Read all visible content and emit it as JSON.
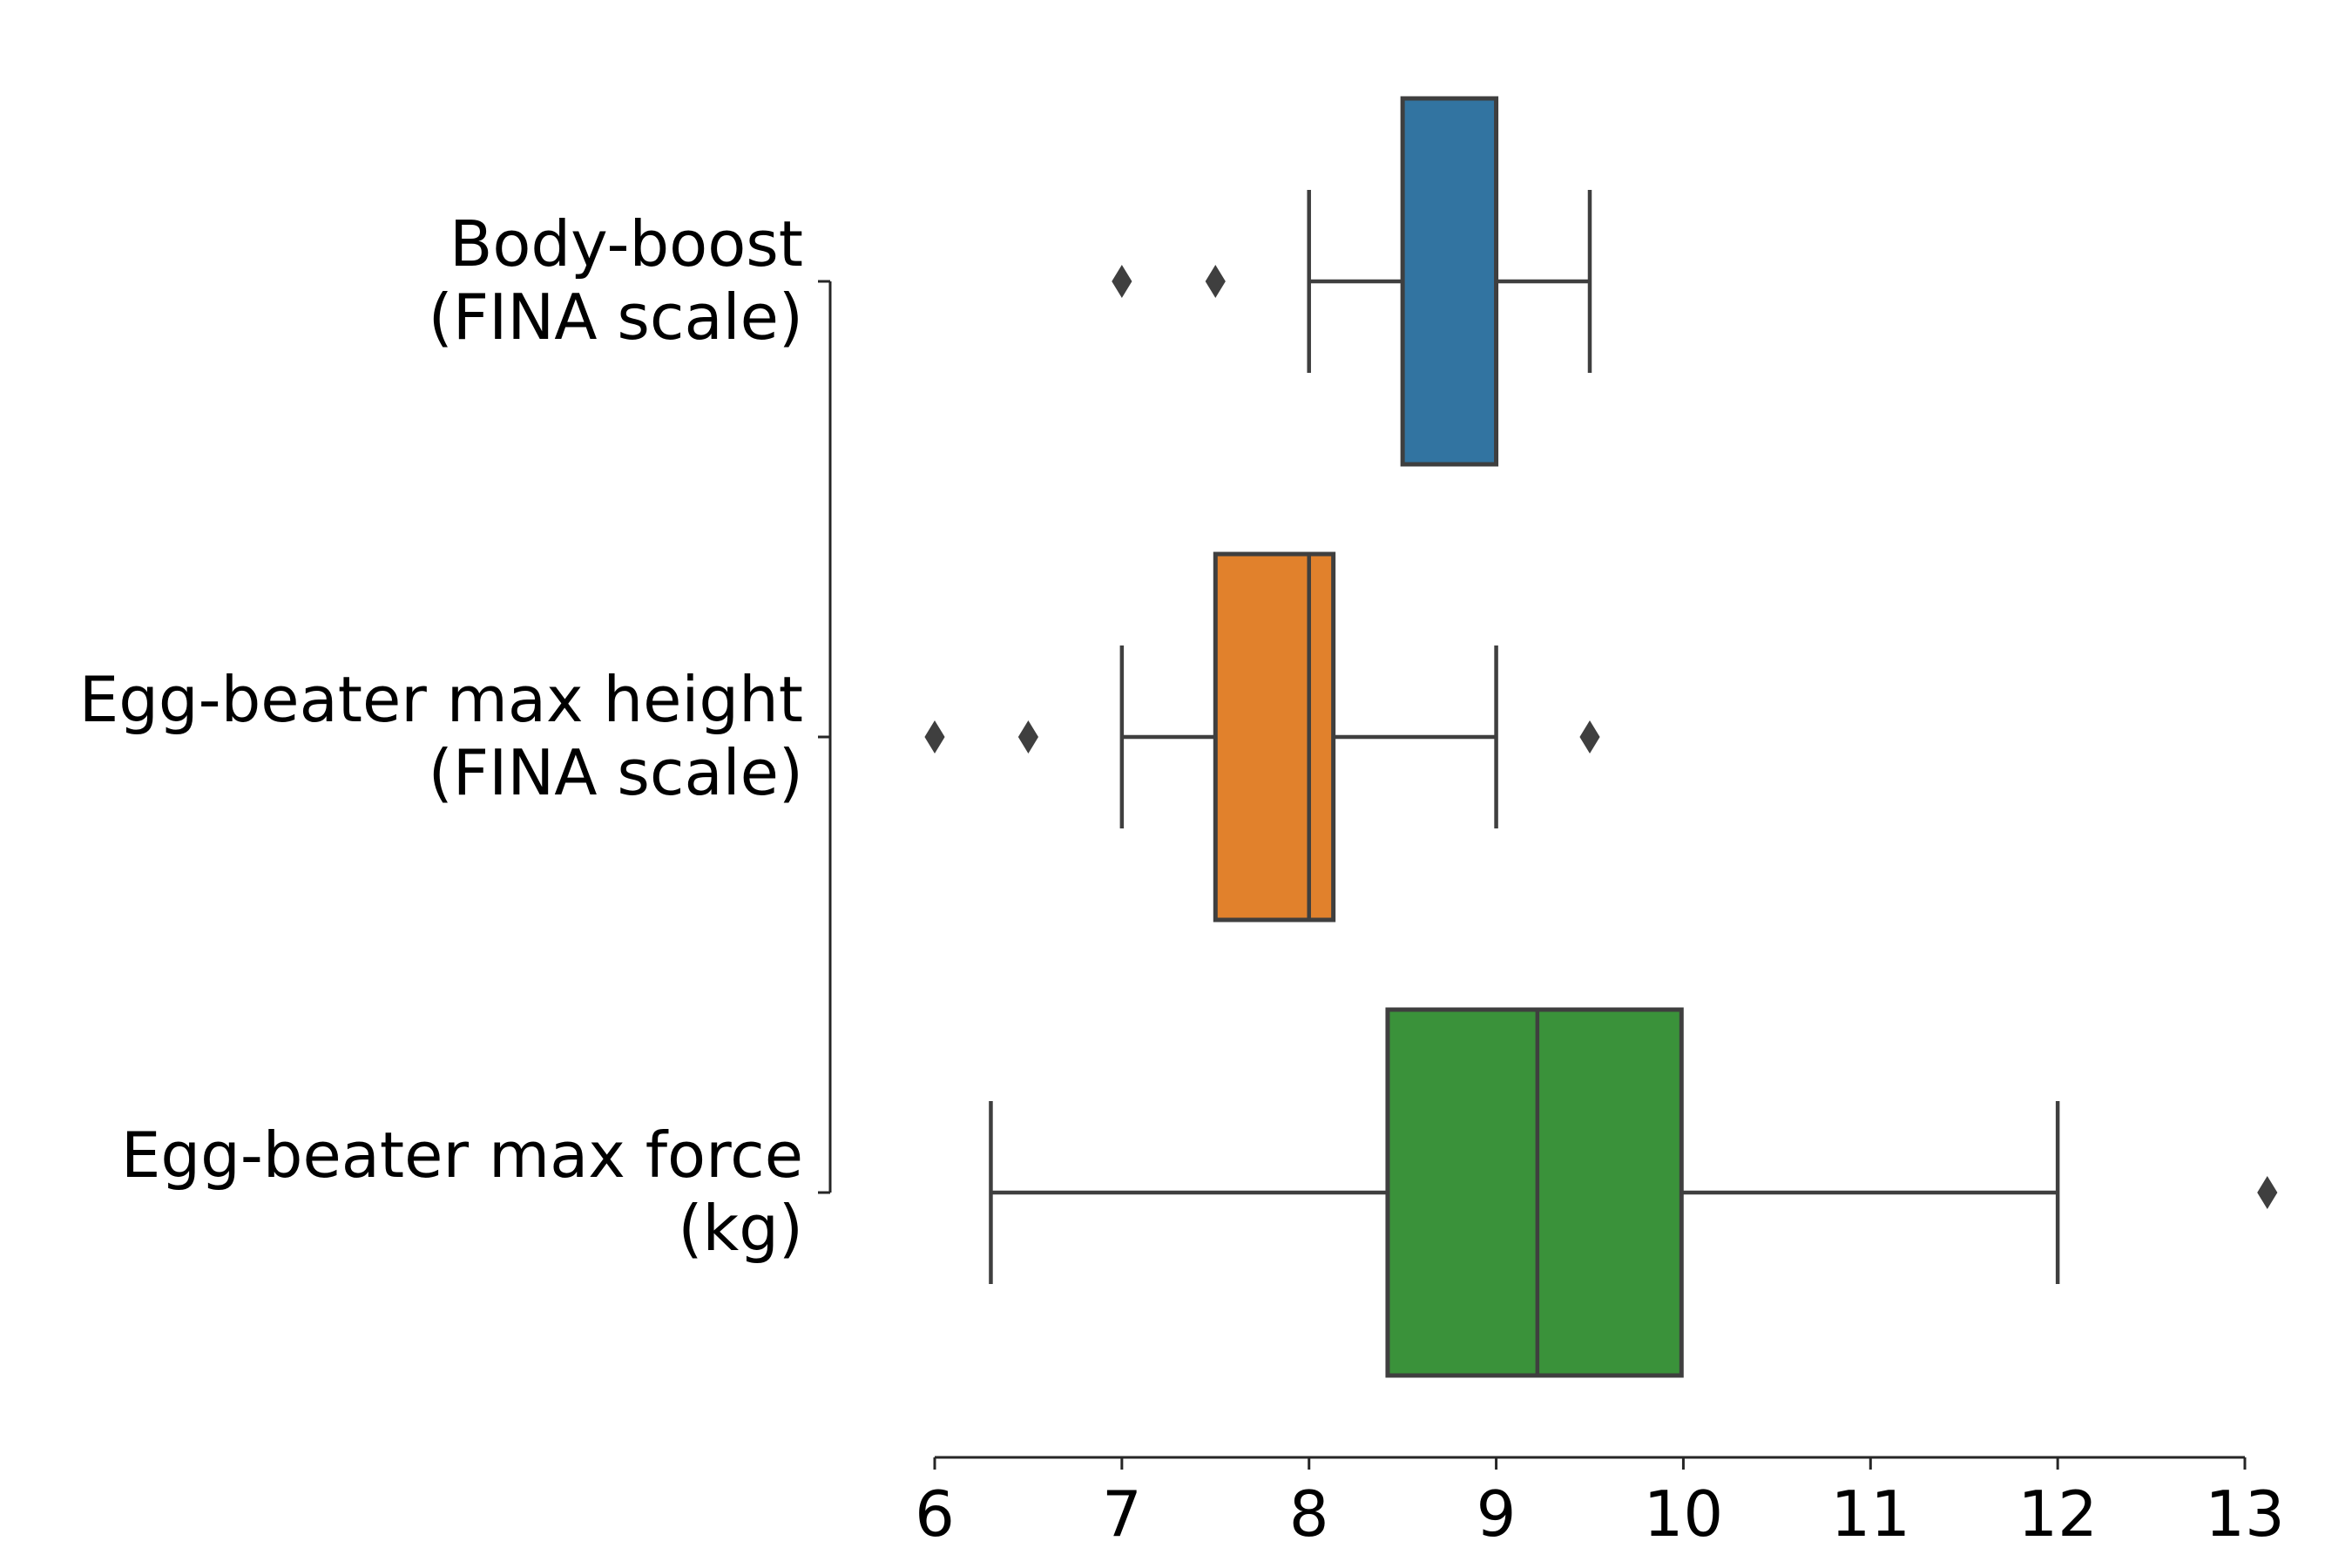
{
  "chart_data": {
    "type": "boxplot",
    "orientation": "horizontal",
    "title": "",
    "xlabel": "",
    "ylabel": "",
    "xlim": [
      6,
      13
    ],
    "x_ticks": [
      "6",
      "7",
      "8",
      "9",
      "10",
      "11",
      "12",
      "13"
    ],
    "grid": false,
    "series": [
      {
        "lines": [
          "Body-boost",
          "(FINA scale)"
        ],
        "color": "#3274a1",
        "whisker_low": 8.0,
        "q1": 8.5,
        "median": 9.0,
        "q3": 9.0,
        "whisker_high": 9.5,
        "outliers": [
          7.0,
          7.5
        ]
      },
      {
        "lines": [
          "Egg-beater max height",
          "(FINA scale)"
        ],
        "color": "#e1812c",
        "whisker_low": 7.0,
        "q1": 7.5,
        "median": 8.0,
        "q3": 8.13,
        "whisker_high": 9.0,
        "outliers": [
          6.0,
          6.5,
          9.5
        ]
      },
      {
        "lines": [
          "Egg-beater max force",
          "(kg)"
        ],
        "color": "#3a923a",
        "whisker_low": 6.3,
        "q1": 8.42,
        "median": 9.22,
        "q3": 9.99,
        "whisker_high": 12.0,
        "outliers": [
          13.12
        ]
      }
    ]
  }
}
